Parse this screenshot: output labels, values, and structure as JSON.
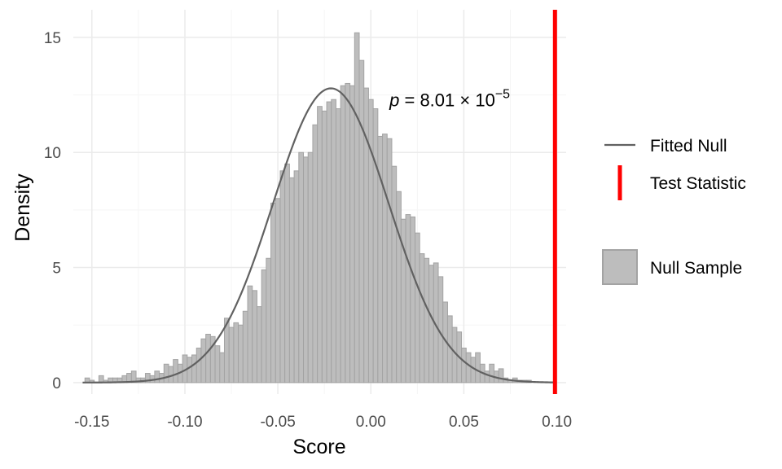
{
  "chart_data": {
    "type": "bar",
    "xlabel": "Score",
    "ylabel": "Density",
    "xlim": [
      -0.16,
      0.105
    ],
    "ylim": [
      -0.5,
      16.2
    ],
    "grid": true,
    "x_ticks": [
      -0.15,
      -0.1,
      -0.05,
      0.0,
      0.05,
      0.1
    ],
    "x_tick_labels": [
      "-0.15",
      "-0.10",
      "-0.05",
      "0.00",
      "0.05",
      "0.10"
    ],
    "y_ticks": [
      0,
      5,
      10,
      15
    ],
    "y_tick_labels": [
      "0",
      "5",
      "10",
      "15"
    ],
    "histogram": {
      "name": "Null Sample",
      "bin_width": 0.0025,
      "bins": [
        {
          "x": -0.1525,
          "y": 0.2
        },
        {
          "x": -0.15,
          "y": 0.1
        },
        {
          "x": -0.1475,
          "y": 0.0
        },
        {
          "x": -0.145,
          "y": 0.3
        },
        {
          "x": -0.1425,
          "y": 0.1
        },
        {
          "x": -0.14,
          "y": 0.2
        },
        {
          "x": -0.1375,
          "y": 0.2
        },
        {
          "x": -0.135,
          "y": 0.2
        },
        {
          "x": -0.1325,
          "y": 0.3
        },
        {
          "x": -0.13,
          "y": 0.4
        },
        {
          "x": -0.1275,
          "y": 0.5
        },
        {
          "x": -0.125,
          "y": 0.2
        },
        {
          "x": -0.1225,
          "y": 0.2
        },
        {
          "x": -0.12,
          "y": 0.4
        },
        {
          "x": -0.1175,
          "y": 0.3
        },
        {
          "x": -0.115,
          "y": 0.5
        },
        {
          "x": -0.1125,
          "y": 0.4
        },
        {
          "x": -0.11,
          "y": 0.8
        },
        {
          "x": -0.1075,
          "y": 0.7
        },
        {
          "x": -0.105,
          "y": 1.0
        },
        {
          "x": -0.1025,
          "y": 0.8
        },
        {
          "x": -0.1,
          "y": 1.2
        },
        {
          "x": -0.0975,
          "y": 1.1
        },
        {
          "x": -0.095,
          "y": 1.2
        },
        {
          "x": -0.0925,
          "y": 1.5
        },
        {
          "x": -0.09,
          "y": 1.9
        },
        {
          "x": -0.0875,
          "y": 2.1
        },
        {
          "x": -0.085,
          "y": 2.0
        },
        {
          "x": -0.0825,
          "y": 1.6
        },
        {
          "x": -0.08,
          "y": 1.3
        },
        {
          "x": -0.0775,
          "y": 2.8
        },
        {
          "x": -0.075,
          "y": 2.4
        },
        {
          "x": -0.0725,
          "y": 2.6
        },
        {
          "x": -0.07,
          "y": 2.5
        },
        {
          "x": -0.0675,
          "y": 3.1
        },
        {
          "x": -0.065,
          "y": 4.2
        },
        {
          "x": -0.0625,
          "y": 4.0
        },
        {
          "x": -0.06,
          "y": 3.3
        },
        {
          "x": -0.0575,
          "y": 4.9
        },
        {
          "x": -0.055,
          "y": 5.4
        },
        {
          "x": -0.0525,
          "y": 7.8
        },
        {
          "x": -0.05,
          "y": 8.0
        },
        {
          "x": -0.0475,
          "y": 9.2
        },
        {
          "x": -0.045,
          "y": 9.5
        },
        {
          "x": -0.0425,
          "y": 8.9
        },
        {
          "x": -0.04,
          "y": 9.2
        },
        {
          "x": -0.0375,
          "y": 10.0
        },
        {
          "x": -0.035,
          "y": 9.8
        },
        {
          "x": -0.0325,
          "y": 10.0
        },
        {
          "x": -0.03,
          "y": 11.2
        },
        {
          "x": -0.0275,
          "y": 12.0
        },
        {
          "x": -0.025,
          "y": 11.8
        },
        {
          "x": -0.0225,
          "y": 12.2
        },
        {
          "x": -0.02,
          "y": 12.3
        },
        {
          "x": -0.0175,
          "y": 11.9
        },
        {
          "x": -0.015,
          "y": 12.9
        },
        {
          "x": -0.0125,
          "y": 13.0
        },
        {
          "x": -0.01,
          "y": 12.9
        },
        {
          "x": -0.0075,
          "y": 15.2
        },
        {
          "x": -0.005,
          "y": 14.0
        },
        {
          "x": -0.0025,
          "y": 12.8
        },
        {
          "x": 0.0,
          "y": 12.3
        },
        {
          "x": 0.0025,
          "y": 11.9
        },
        {
          "x": 0.005,
          "y": 10.7
        },
        {
          "x": 0.0075,
          "y": 10.8
        },
        {
          "x": 0.01,
          "y": 10.6
        },
        {
          "x": 0.0125,
          "y": 9.4
        },
        {
          "x": 0.015,
          "y": 8.3
        },
        {
          "x": 0.0175,
          "y": 7.1
        },
        {
          "x": 0.02,
          "y": 7.3
        },
        {
          "x": 0.0225,
          "y": 7.2
        },
        {
          "x": 0.025,
          "y": 6.5
        },
        {
          "x": 0.0275,
          "y": 5.6
        },
        {
          "x": 0.03,
          "y": 5.4
        },
        {
          "x": 0.0325,
          "y": 5.1
        },
        {
          "x": 0.035,
          "y": 5.2
        },
        {
          "x": 0.0375,
          "y": 4.6
        },
        {
          "x": 0.04,
          "y": 3.5
        },
        {
          "x": 0.0425,
          "y": 2.9
        },
        {
          "x": 0.045,
          "y": 2.4
        },
        {
          "x": 0.0475,
          "y": 2.2
        },
        {
          "x": 0.05,
          "y": 1.5
        },
        {
          "x": 0.0525,
          "y": 1.3
        },
        {
          "x": 0.055,
          "y": 1.1
        },
        {
          "x": 0.0575,
          "y": 1.3
        },
        {
          "x": 0.06,
          "y": 0.8
        },
        {
          "x": 0.0625,
          "y": 0.5
        },
        {
          "x": 0.065,
          "y": 0.8
        },
        {
          "x": 0.0675,
          "y": 0.5
        },
        {
          "x": 0.07,
          "y": 0.6
        },
        {
          "x": 0.0725,
          "y": 0.2
        },
        {
          "x": 0.075,
          "y": 0.1
        },
        {
          "x": 0.0775,
          "y": 0.2
        },
        {
          "x": 0.08,
          "y": 0.1
        },
        {
          "x": 0.0825,
          "y": 0.1
        },
        {
          "x": 0.085,
          "y": 0.1
        }
      ]
    },
    "fitted_null": {
      "name": "Fitted Null",
      "distribution": "normal",
      "mean": -0.0215,
      "sd": 0.0312,
      "x_range": [
        -0.155,
        0.1
      ]
    },
    "test_statistic": {
      "name": "Test Statistic",
      "x": 0.099
    },
    "annotation": {
      "p_symbol": "p",
      "equals": " = ",
      "mantissa": "8.01",
      "times": " × ",
      "base": "10",
      "exponent": "−5",
      "x": 0.01,
      "y": 12.0
    },
    "legend": {
      "placement": "right",
      "entries": [
        {
          "label": "Fitted Null",
          "kind": "line"
        },
        {
          "label": "Test Statistic",
          "kind": "vline"
        },
        {
          "label": "Null Sample",
          "kind": "fill"
        }
      ]
    },
    "colors": {
      "bar_fill": "#bdbdbd",
      "bar_stroke": "#a3a3a3",
      "curve": "#616161",
      "test_stat": "#ff0000",
      "grid_major": "#ebebeb",
      "grid_minor": "#f5f5f5"
    }
  }
}
